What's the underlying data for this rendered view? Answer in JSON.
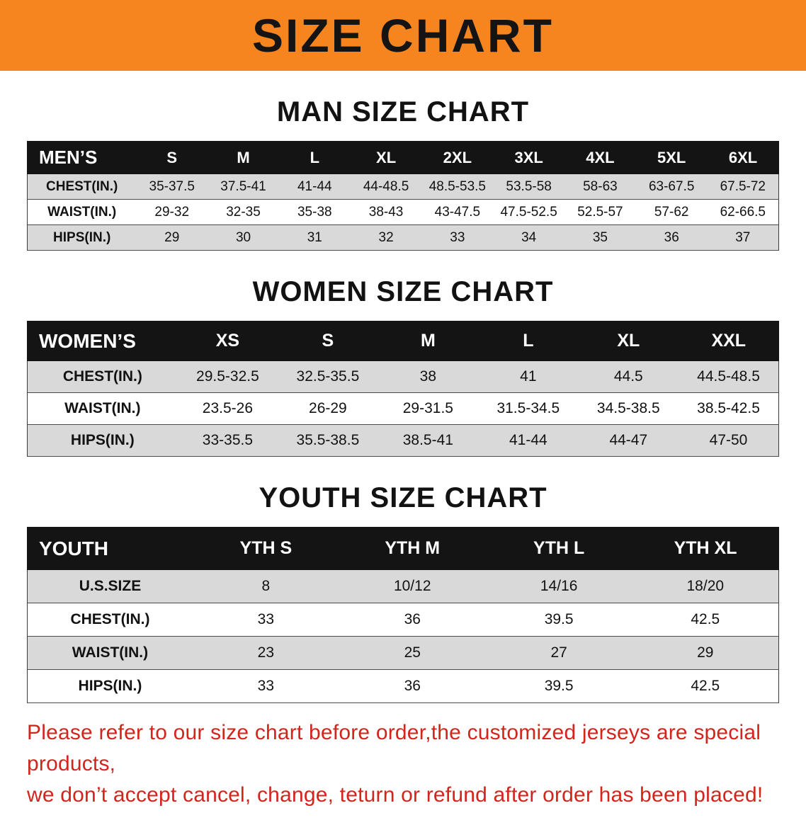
{
  "banner": {
    "title": "SIZE CHART"
  },
  "colors": {
    "banner_orange": "#f6851f",
    "header_bar_black": "#141414",
    "row_shade_gray": "#d9d9d9",
    "notice_red": "#d2251c"
  },
  "sections": [
    {
      "heading": "MAN SIZE CHART",
      "header": [
        "MEN’S",
        "S",
        "M",
        "L",
        "XL",
        "2XL",
        "3XL",
        "4XL",
        "5XL",
        "6XL"
      ],
      "rows": [
        [
          "CHEST(IN.)",
          "35-37.5",
          "37.5-41",
          "41-44",
          "44-48.5",
          "48.5-53.5",
          "53.5-58",
          "58-63",
          "63-67.5",
          "67.5-72"
        ],
        [
          "WAIST(IN.)",
          "29-32",
          "32-35",
          "35-38",
          "38-43",
          "43-47.5",
          "47.5-52.5",
          "52.5-57",
          "57-62",
          "62-66.5"
        ],
        [
          "HIPS(IN.)",
          "29",
          "30",
          "31",
          "32",
          "33",
          "34",
          "35",
          "36",
          "37"
        ]
      ]
    },
    {
      "heading": "WOMEN SIZE CHART",
      "header": [
        "WOMEN’S",
        "XS",
        "S",
        "M",
        "L",
        "XL",
        "XXL"
      ],
      "rows": [
        [
          "CHEST(IN.)",
          "29.5-32.5",
          "32.5-35.5",
          "38",
          "41",
          "44.5",
          "44.5-48.5"
        ],
        [
          "WAIST(IN.)",
          "23.5-26",
          "26-29",
          "29-31.5",
          "31.5-34.5",
          "34.5-38.5",
          "38.5-42.5"
        ],
        [
          "HIPS(IN.)",
          "33-35.5",
          "35.5-38.5",
          "38.5-41",
          "41-44",
          "44-47",
          "47-50"
        ]
      ]
    },
    {
      "heading": "YOUTH SIZE CHART",
      "header": [
        "YOUTH",
        "YTH S",
        "YTH M",
        "YTH L",
        "YTH XL"
      ],
      "rows": [
        [
          "U.S.SIZE",
          "8",
          "10/12",
          "14/16",
          "18/20"
        ],
        [
          "CHEST(IN.)",
          "33",
          "36",
          "39.5",
          "42.5"
        ],
        [
          "WAIST(IN.)",
          "23",
          "25",
          "27",
          "29"
        ],
        [
          "HIPS(IN.)",
          "33",
          "36",
          "39.5",
          "42.5"
        ]
      ]
    }
  ],
  "notice": {
    "line1": "Please refer to our size chart before order,the customized jerseys are special products,",
    "line2": "we don’t accept cancel, change, teturn or refund after order has been placed!"
  }
}
